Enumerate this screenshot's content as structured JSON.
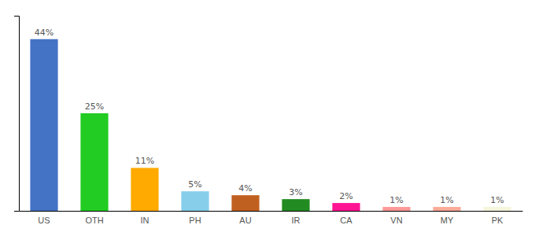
{
  "chart_data": {
    "type": "bar",
    "categories": [
      "US",
      "OTH",
      "IN",
      "PH",
      "AU",
      "IR",
      "CA",
      "VN",
      "MY",
      "PK"
    ],
    "values": [
      44,
      25,
      11,
      5,
      4,
      3,
      2,
      1,
      1,
      1
    ],
    "value_labels": [
      "44%",
      "25%",
      "11%",
      "5%",
      "4%",
      "3%",
      "2%",
      "1%",
      "1%",
      "1%"
    ],
    "colors": [
      "#4472c4",
      "#22cc22",
      "#ffaa00",
      "#87ceeb",
      "#c06020",
      "#228b22",
      "#ff1493",
      "#ff9999",
      "#ffaa99",
      "#f5f5dc"
    ],
    "ylim": [
      0,
      50
    ],
    "data_labels": true,
    "grid": false,
    "tick_labels": "x"
  }
}
